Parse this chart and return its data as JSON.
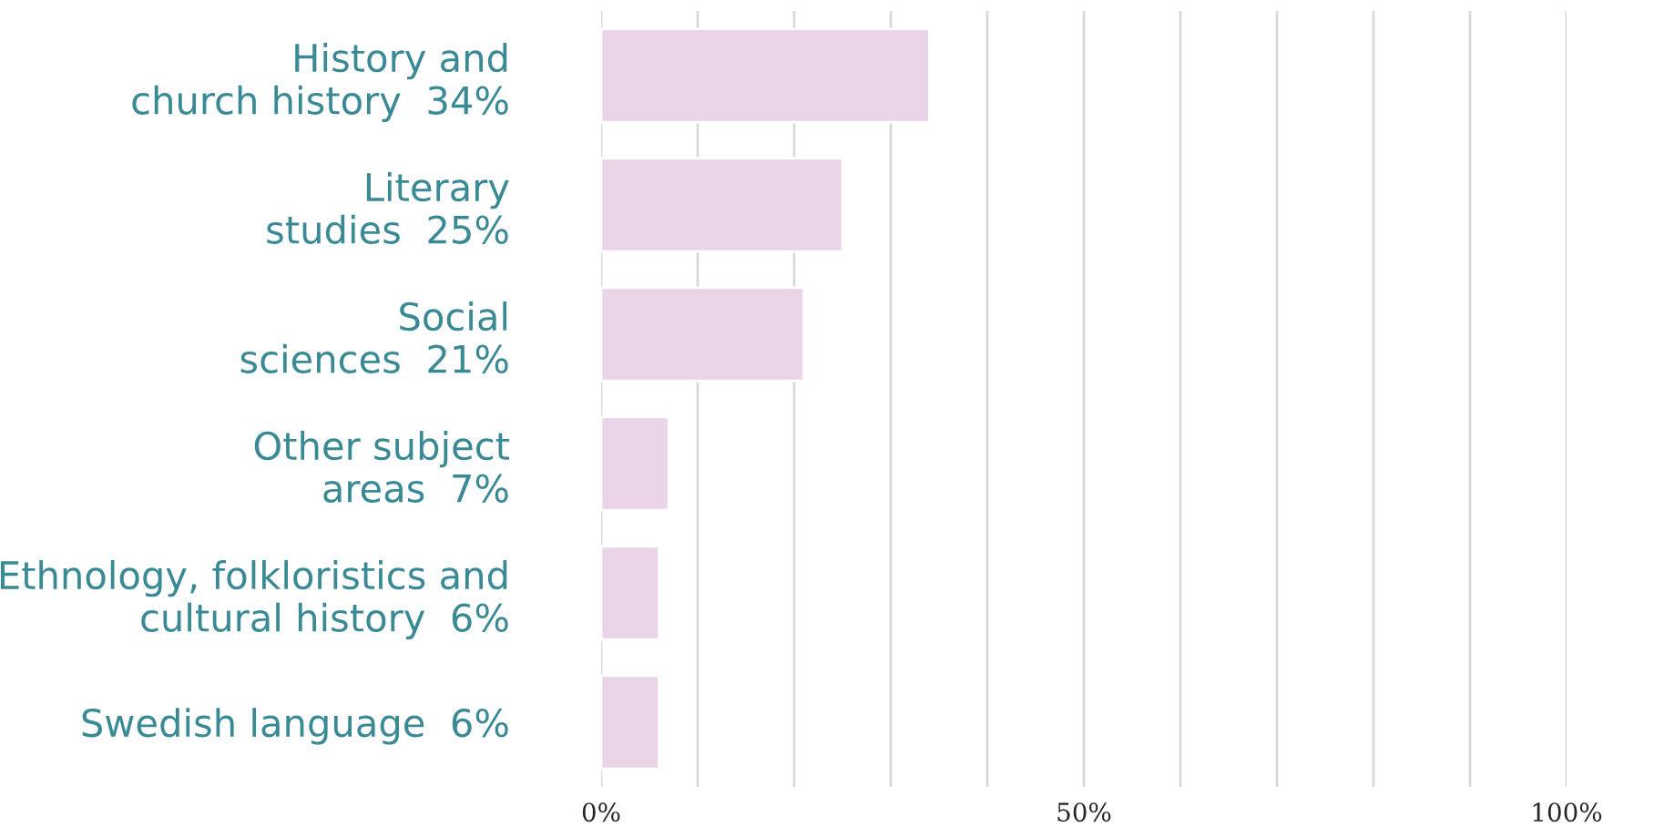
{
  "chart_data": {
    "type": "bar",
    "orientation": "horizontal",
    "categories": [
      "History and\nchurch history",
      "Literary\nstudies",
      "Social\nsciences",
      "Other subject\nareas",
      "Ethnology, folkloristics and\ncultural history",
      "Swedish language"
    ],
    "values": [
      34,
      25,
      21,
      7,
      6,
      6
    ],
    "value_labels": [
      "34%",
      "25%",
      "21%",
      "7%",
      "6%",
      "6%"
    ],
    "color": "#ead5e8",
    "xlim": [
      0,
      100
    ],
    "xticks": [
      {
        "value": 0,
        "label": "0%"
      },
      {
        "value": 10,
        "label": null
      },
      {
        "value": 20,
        "label": null
      },
      {
        "value": 30,
        "label": null
      },
      {
        "value": 40,
        "label": null
      },
      {
        "value": 50,
        "label": "50%"
      },
      {
        "value": 60,
        "label": null
      },
      {
        "value": 70,
        "label": null
      },
      {
        "value": 80,
        "label": null
      },
      {
        "value": 90,
        "label": null
      },
      {
        "value": 100,
        "label": "100%"
      }
    ],
    "grid": "x"
  }
}
